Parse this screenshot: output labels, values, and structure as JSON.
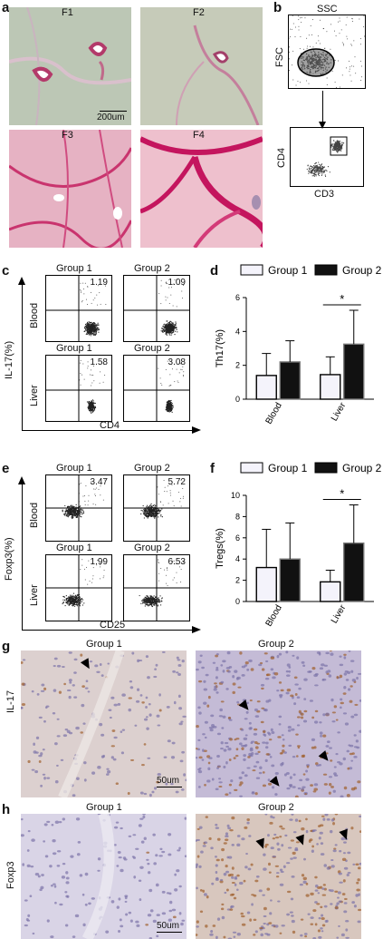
{
  "panel_letters": {
    "a": "a",
    "b": "b",
    "c": "c",
    "d": "d",
    "e": "e",
    "f": "f",
    "g": "g",
    "h": "h"
  },
  "panel_a": {
    "labels": [
      "F1",
      "F2",
      "F3",
      "F4"
    ],
    "scale_bar": "200um"
  },
  "panel_b": {
    "top_x": "SSC",
    "top_y": "FSC",
    "bottom_y": "CD4",
    "bottom_x": "CD3"
  },
  "panel_c": {
    "groups": [
      "Group 1",
      "Group 2"
    ],
    "rows": [
      "Blood",
      "Liver"
    ],
    "values": [
      [
        "1.19",
        "1.09"
      ],
      [
        "1.58",
        "3.08"
      ]
    ],
    "y_axis": "IL-17(%)",
    "x_axis": "CD4"
  },
  "panel_e": {
    "groups": [
      "Group 1",
      "Group 2"
    ],
    "rows": [
      "Blood",
      "Liver"
    ],
    "values": [
      [
        "3.47",
        "5.72"
      ],
      [
        "1.99",
        "6.53"
      ]
    ],
    "y_axis": "Foxp3(%)",
    "x_axis": "CD25"
  },
  "chart_data": [
    {
      "panel": "d",
      "type": "bar",
      "categories": [
        "Blood",
        "Liver"
      ],
      "series": [
        {
          "name": "Group 1",
          "values": [
            1.4,
            1.45
          ],
          "errors": [
            1.3,
            1.05
          ],
          "color": "#f4f3fb"
        },
        {
          "name": "Group 2",
          "values": [
            2.2,
            3.25
          ],
          "errors": [
            1.25,
            2.0
          ],
          "color": "#111111"
        }
      ],
      "ylabel": "Th17(%)",
      "ylim": [
        0,
        6
      ],
      "yticks": [
        0,
        2,
        4,
        6
      ],
      "significance": "*",
      "legend": "top"
    },
    {
      "panel": "f",
      "type": "bar",
      "categories": [
        "Blood",
        "Liver"
      ],
      "series": [
        {
          "name": "Group 1",
          "values": [
            3.2,
            1.85
          ],
          "errors": [
            3.6,
            1.1
          ],
          "color": "#f4f3fb"
        },
        {
          "name": "Group 2",
          "values": [
            4.0,
            5.5
          ],
          "errors": [
            3.4,
            3.6
          ],
          "color": "#111111"
        }
      ],
      "ylabel": "Tregs(%)",
      "ylim": [
        0,
        10
      ],
      "yticks": [
        0,
        2,
        4,
        6,
        8,
        10
      ],
      "significance": "*",
      "legend": "top"
    }
  ],
  "panel_g": {
    "groups": [
      "Group 1",
      "Group 2"
    ],
    "ylabel": "IL-17",
    "scale_bar": "50um"
  },
  "panel_h": {
    "groups": [
      "Group 1",
      "Group 2"
    ],
    "ylabel": "Foxp3",
    "scale_bar": "50um"
  }
}
